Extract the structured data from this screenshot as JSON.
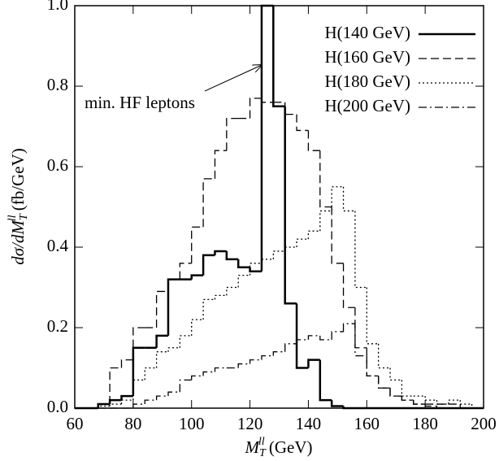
{
  "chart_data": {
    "type": "histogram",
    "x_label": [
      "M",
      "T",
      "ll",
      " (GeV)"
    ],
    "y_label": [
      "dσ/dM",
      "T",
      "ll",
      " (fb/GeV)"
    ],
    "annotation": "min. HF leptons",
    "xlim": [
      60,
      200
    ],
    "ylim": [
      0,
      1
    ],
    "xticks": [
      60,
      80,
      100,
      120,
      140,
      160,
      180,
      200
    ],
    "yticks": [
      {
        "value": 0,
        "label": "0.0"
      },
      0.2,
      0.4,
      0.6,
      0.8,
      {
        "value": 1,
        "label": "1.0"
      }
    ],
    "legend": "top-right",
    "bins": [
      60,
      64,
      68,
      72,
      76,
      80,
      84,
      88,
      92,
      96,
      100,
      104,
      108,
      112,
      116,
      120,
      124,
      128,
      132,
      136,
      140,
      144,
      148,
      152,
      156,
      160,
      164,
      168,
      172,
      176,
      180,
      184,
      188,
      192,
      196,
      200
    ],
    "series": [
      {
        "name": "H(140 GeV)",
        "color": "#000000",
        "dash": "solid",
        "values": [
          0,
          0,
          0.01,
          0.02,
          0.03,
          0.15,
          0.15,
          0.18,
          0.32,
          0.32,
          0.33,
          0.38,
          0.39,
          0.37,
          0.35,
          0.34,
          1.0,
          0.75,
          0.26,
          0.1,
          0.12,
          0.02,
          0.005,
          0,
          0,
          0,
          0,
          0,
          0,
          0,
          0,
          0,
          0,
          0,
          0
        ]
      },
      {
        "name": "H(160 GeV)",
        "color": "#000000",
        "dash": "dashed",
        "values": [
          0,
          0,
          0.01,
          0.1,
          0.12,
          0.2,
          0.2,
          0.29,
          0.32,
          0.36,
          0.45,
          0.57,
          0.64,
          0.72,
          0.72,
          0.77,
          0.76,
          0.76,
          0.73,
          0.69,
          0.64,
          0.5,
          0.36,
          0.25,
          0.15,
          0.08,
          0.05,
          0.03,
          0.02,
          0.01,
          0.005,
          0,
          0,
          0,
          0
        ]
      },
      {
        "name": "H(180 GeV)",
        "color": "#000000",
        "dash": "dotted",
        "values": [
          0,
          0,
          0.005,
          0.01,
          0.02,
          0.07,
          0.1,
          0.14,
          0.15,
          0.18,
          0.22,
          0.27,
          0.28,
          0.3,
          0.33,
          0.36,
          0.37,
          0.39,
          0.4,
          0.42,
          0.44,
          0.49,
          0.55,
          0.49,
          0.3,
          0.16,
          0.1,
          0.07,
          0.03,
          0.03,
          0.02,
          0.01,
          0.02,
          0.01,
          0
        ]
      },
      {
        "name": "H(200 GeV)",
        "color": "#000000",
        "dash": "dashdot",
        "values": [
          0,
          0,
          0,
          0,
          0,
          0.01,
          0.02,
          0.03,
          0.04,
          0.07,
          0.08,
          0.09,
          0.1,
          0.1,
          0.11,
          0.12,
          0.13,
          0.14,
          0.16,
          0.17,
          0.18,
          0.17,
          0.19,
          0.21,
          0.13,
          0.08,
          0.05,
          0.03,
          0.02,
          0.01,
          0.01,
          0.01,
          0.01,
          0,
          0
        ]
      }
    ]
  }
}
